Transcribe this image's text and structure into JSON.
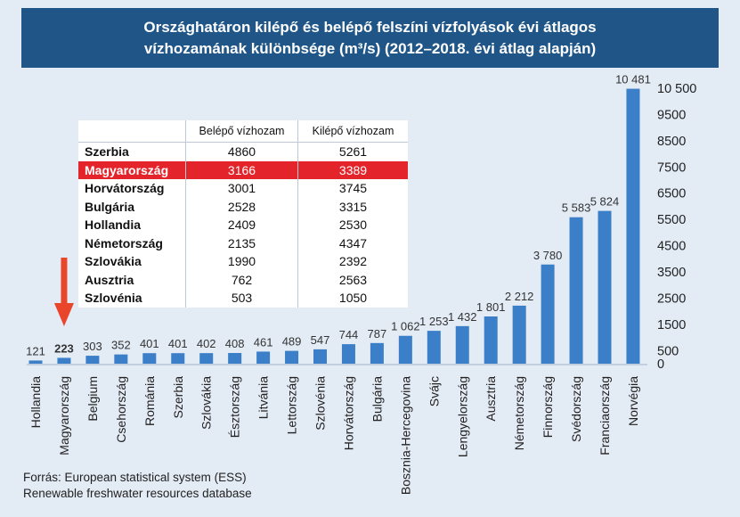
{
  "title": {
    "line1": "Országhatáron kilépő és belépő felszíni vízfolyások évi átlagos",
    "line2": "vízhozamának különbsége (m³/s) (2012–2018. évi átlag alapján)"
  },
  "colors": {
    "header": "#1f5687",
    "bar": "#3a7fc7",
    "highlight": "#e4242b",
    "arrow": "#e8452a"
  },
  "chart_data": {
    "type": "bar",
    "categories": [
      "Hollandia",
      "Magyarország",
      "Belgium",
      "Csehország",
      "Románia",
      "Szerbia",
      "Szlovákia",
      "Észtország",
      "Litvánia",
      "Lettország",
      "Szlovénia",
      "Horvátország",
      "Bulgária",
      "Bosznia-Hercegovina",
      "Svájc",
      "Lengyelország",
      "Ausztria",
      "Németország",
      "Finnország",
      "Svédország",
      "Franciaország",
      "Norvégia"
    ],
    "values": [
      121,
      223,
      303,
      352,
      401,
      401,
      402,
      408,
      461,
      489,
      547,
      744,
      787,
      1062,
      1253,
      1432,
      1801,
      2212,
      3780,
      5583,
      5824,
      10481
    ],
    "value_labels": [
      "121",
      "223",
      "303",
      "352",
      "401",
      "401",
      "402",
      "408",
      "461",
      "489",
      "547",
      "744",
      "787",
      "1 062",
      "1 253",
      "1 432",
      "1 801",
      "2 212",
      "3 780",
      "5 583",
      "5 824",
      "10 481"
    ],
    "highlight_category": "Magyarország",
    "y_tick_labels": [
      "0",
      "500",
      "1500",
      "2500",
      "3500",
      "4500",
      "5500",
      "6500",
      "7500",
      "8500",
      "9500",
      "10 500"
    ],
    "y_axis_position": "right",
    "grid": false
  },
  "table": {
    "headers": [
      "",
      "Belépő vízhozam",
      "Kilépő vízhozam"
    ],
    "rows": [
      [
        "Szerbia",
        "4860",
        "5261"
      ],
      [
        "Magyarország",
        "3166",
        "3389"
      ],
      [
        "Horvátország",
        "3001",
        "3745"
      ],
      [
        "Bulgária",
        "2528",
        "3315"
      ],
      [
        "Hollandia",
        "2409",
        "2530"
      ],
      [
        "Németország",
        "2135",
        "4347"
      ],
      [
        "Szlovákia",
        "1990",
        "2392"
      ],
      [
        "Ausztria",
        "762",
        "2563"
      ],
      [
        "Szlovénia",
        "503",
        "1050"
      ]
    ],
    "highlight_row": 1
  },
  "source": {
    "line1": "Forrás: European statistical system (ESS)",
    "line2": "Renewable freshwater resources database"
  }
}
